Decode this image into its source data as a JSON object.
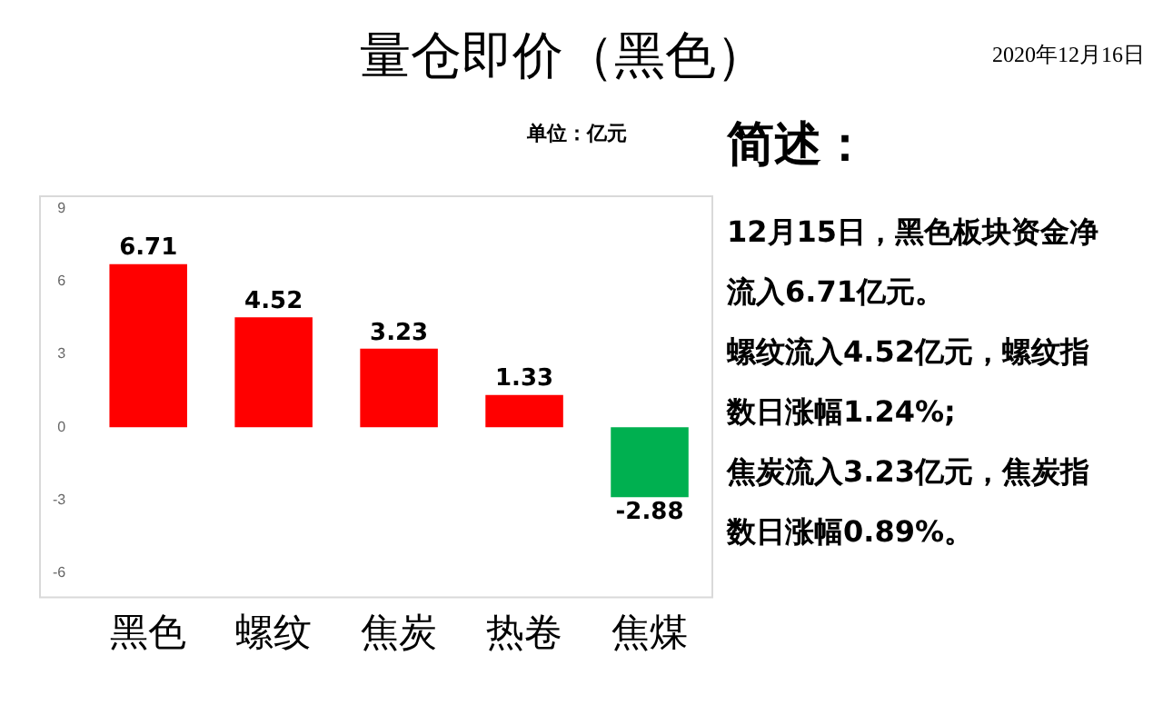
{
  "chart_data": {
    "type": "bar",
    "title": "量仓即价（黑色）",
    "subtitle": "2020年12月16日",
    "categories": [
      "黑色",
      "螺纹",
      "焦炭",
      "热卷",
      "焦煤"
    ],
    "values": [
      6.71,
      4.52,
      3.23,
      1.33,
      -2.88
    ],
    "colors": [
      "#ff0000",
      "#ff0000",
      "#ff0000",
      "#ff0000",
      "#00b050"
    ],
    "ylim": [
      -7,
      9.5
    ],
    "yticks": [
      -6,
      -3,
      0,
      3,
      6,
      9
    ],
    "grid": false,
    "legend": false,
    "data_labels": true,
    "annotations": [
      "单位：亿元",
      "简述：",
      "12月15日，黑色板块资金净流入6.71亿元。",
      "螺纹流入4.52亿元，螺纹指数日涨幅1.24%;",
      "焦炭流入3.23亿元，焦炭指数日涨幅0.89%。"
    ]
  }
}
